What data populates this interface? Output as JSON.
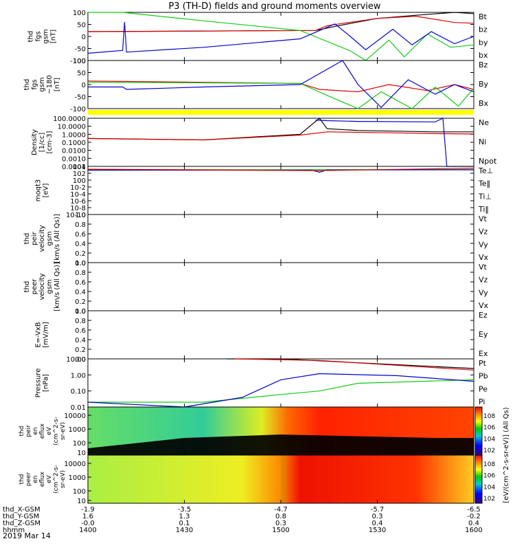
{
  "title": "P3 (TH-D) fields and ground moments overview",
  "date_label": "2019 Mar 14",
  "colors": {
    "black": "#000000",
    "red": "#dd0000",
    "green": "#11cc11",
    "blue": "#0000cc",
    "yellow": "#ffff00"
  },
  "chart_data": {
    "type": "line",
    "x_range": [
      "14:00",
      "16:00"
    ],
    "x_tick_rows": [
      {
        "label": "thd_X-GSM",
        "values": [
          "-1.9",
          "-3.5",
          "-4.7",
          "-5.7",
          "-6.5"
        ]
      },
      {
        "label": "thd_Y-GSM",
        "values": [
          "1.6",
          "1.3",
          "0.8",
          "0.3",
          "-0.2"
        ]
      },
      {
        "label": "thd_Z-GSM",
        "values": [
          "-0.0",
          "0.1",
          "0.3",
          "0.4",
          "0.4"
        ]
      },
      {
        "label": "hhmm",
        "values": [
          "1400",
          "1430",
          "1500",
          "1530",
          "1600"
        ]
      }
    ],
    "panels": [
      {
        "ylabel": [
          "thd",
          "fgs",
          "gsm",
          "[nT]"
        ],
        "yticks": [
          "100",
          "50",
          "0",
          "-50",
          "-100"
        ],
        "legend": [
          {
            "text": "Bt",
            "color": "#000000"
          },
          {
            "text": "bz",
            "color": "#dd0000"
          },
          {
            "text": "by",
            "color": "#11cc11"
          },
          {
            "text": "bx",
            "color": "#0000cc"
          }
        ],
        "series": [
          {
            "name": "Bt",
            "color": "#000000",
            "x": [
              0.0,
              0.59,
              0.65,
              0.75,
              0.85,
              0.95,
              1.0
            ],
            "y": [
              20,
              25,
              45,
              75,
              88,
              100,
              95
            ]
          },
          {
            "name": "bz",
            "color": "#dd0000",
            "x": [
              0.0,
              0.59,
              0.62,
              0.75,
              0.85,
              0.95,
              1.0
            ],
            "y": [
              20,
              25,
              45,
              75,
              84,
              58,
              55
            ]
          },
          {
            "name": "by",
            "color": "#11cc11",
            "x": [
              0.0,
              0.09,
              0.3,
              0.55,
              0.68,
              0.72,
              0.78,
              0.82,
              0.88,
              0.94,
              1.0
            ],
            "y": [
              110,
              100,
              65,
              25,
              -60,
              -100,
              -15,
              -85,
              10,
              -45,
              -35
            ]
          },
          {
            "name": "bx",
            "color": "#0000cc",
            "x": [
              0.0,
              0.09,
              0.095,
              0.1,
              0.3,
              0.55,
              0.64,
              0.68,
              0.72,
              0.79,
              0.84,
              0.89,
              0.95,
              1.0
            ],
            "y": [
              -70,
              -58,
              60,
              -65,
              -45,
              -10,
              52,
              0,
              -55,
              30,
              -35,
              20,
              -30,
              0
            ]
          }
        ]
      },
      {
        "ylabel": [
          "thd",
          "fgs",
          "gsm",
          "~180",
          "[nT]"
        ],
        "yticks": [
          "100",
          "50",
          "0",
          "-50",
          "-100"
        ],
        "legend": [
          {
            "text": "Bz",
            "color": "#dd0000"
          },
          {
            "text": "By",
            "color": "#11cc11"
          },
          {
            "text": "Bx",
            "color": "#0000cc"
          }
        ],
        "series": [
          {
            "name": "Bz",
            "color": "#dd0000",
            "x": [
              0.0,
              0.55,
              0.6,
              0.7,
              0.78,
              0.88,
              0.95,
              1.0
            ],
            "y": [
              15,
              5,
              -20,
              -30,
              0,
              -25,
              0,
              -20
            ]
          },
          {
            "name": "By",
            "color": "#11cc11",
            "x": [
              0.0,
              0.55,
              0.62,
              0.7,
              0.76,
              0.84,
              0.9,
              0.96,
              1.0
            ],
            "y": [
              10,
              5,
              -45,
              -120,
              -30,
              -110,
              -10,
              -90,
              -15
            ]
          },
          {
            "name": "Bx",
            "color": "#0000cc",
            "x": [
              0.0,
              0.09,
              0.1,
              0.3,
              0.55,
              0.66,
              0.7,
              0.76,
              0.83,
              0.9,
              0.95,
              1.0
            ],
            "y": [
              -10,
              -10,
              -20,
              -10,
              0,
              100,
              0,
              -95,
              20,
              -40,
              0,
              -30
            ]
          }
        ]
      },
      {
        "ylabel": [
          "Density",
          "[1/cc]",
          "[cm-3]"
        ],
        "yticks": [
          "100.0000",
          "10.0000",
          "1.0000",
          "0.1000",
          "0.0100",
          "0.0010",
          "0.0001"
        ],
        "log": true,
        "legend": [
          {
            "text": "Ne",
            "color": "#dd0000"
          },
          {
            "text": "Ni",
            "color": "#000000"
          },
          {
            "text": "Npot",
            "color": "#0000cc"
          }
        ],
        "series": [
          {
            "name": "Ni",
            "color": "#000000",
            "x": [
              0.0,
              0.3,
              0.55,
              0.6,
              0.62,
              0.7,
              0.9,
              1.0
            ],
            "y": [
              0.3,
              0.2,
              1.0,
              100,
              5,
              3,
              2,
              2
            ]
          },
          {
            "name": "Ne",
            "color": "#dd0000",
            "x": [
              0.0,
              0.3,
              0.55,
              0.62,
              0.8,
              0.9,
              1.0
            ],
            "y": [
              0.3,
              0.2,
              0.8,
              2,
              1.5,
              1.2,
              1.1
            ]
          },
          {
            "name": "Npot",
            "color": "#0000cc",
            "x": [
              0.59,
              0.62,
              0.7,
              0.9,
              0.92,
              0.93,
              0.95,
              1.0
            ],
            "y": [
              60,
              50,
              40,
              35,
              100,
              0.0001,
              0.0001,
              0.0001
            ]
          }
        ]
      },
      {
        "ylabel": [
          "moqt3",
          "[eV]"
        ],
        "yticks": [
          "10^4",
          "10^2",
          "10^0",
          "10^-2",
          "10^-4",
          "10^-6",
          "10^-8",
          "10^-10"
        ],
        "log": true,
        "legend": [
          {
            "text": "Te⊥",
            "color": "#dd0000"
          },
          {
            "text": "Te‖",
            "color": "#000000"
          },
          {
            "text": "Ti⊥",
            "color": "#0000cc"
          },
          {
            "text": "Ti‖",
            "color": "#11cc11"
          }
        ],
        "series": [
          {
            "name": "Ti‖",
            "color": "#11cc11",
            "x": [
              0.0,
              1.0
            ],
            "y": [
              1000,
              1200
            ]
          },
          {
            "name": "Ti⊥",
            "color": "#0000cc",
            "x": [
              0.0,
              0.58,
              0.6,
              0.62,
              1.0
            ],
            "y": [
              800,
              800,
              200,
              900,
              1000
            ]
          },
          {
            "name": "Te⊥",
            "color": "#dd0000",
            "x": [
              0.0,
              0.6,
              1.0
            ],
            "y": [
              1500,
              600,
              3000
            ]
          }
        ]
      },
      {
        "ylabel": [
          "thd",
          "peir",
          "velocity",
          "gsm",
          "[km/s (All Qs)]"
        ],
        "yticks": [
          "1.0",
          "0.8",
          "0.6",
          "0.4",
          "0.2",
          "0.0"
        ],
        "legend": [
          {
            "text": "Vt",
            "color": "#000000"
          },
          {
            "text": "Vz",
            "color": "#dd0000"
          },
          {
            "text": "Vy",
            "color": "#11cc11"
          },
          {
            "text": "Vx",
            "color": "#0000cc"
          }
        ],
        "series": []
      },
      {
        "ylabel": [
          "thd",
          "peer",
          "velocity",
          "gsm",
          "[km/s (All Qs)]"
        ],
        "yticks": [
          "1.0",
          "0.8",
          "0.6",
          "0.4",
          "0.2",
          "0.0"
        ],
        "legend": [
          {
            "text": "Vt",
            "color": "#000000"
          },
          {
            "text": "Vz",
            "color": "#dd0000"
          },
          {
            "text": "Vy",
            "color": "#11cc11"
          },
          {
            "text": "Vx",
            "color": "#0000cc"
          }
        ],
        "series": []
      },
      {
        "ylabel": [
          "E=-VxB",
          "[mV/m]"
        ],
        "yticks": [
          "1.0",
          "0.8",
          "0.6",
          "0.4",
          "0.2",
          "0.0"
        ],
        "legend": [
          {
            "text": "Ez",
            "color": "#dd0000"
          },
          {
            "text": "Ey",
            "color": "#11cc11"
          },
          {
            "text": "Ex",
            "color": "#0000cc"
          }
        ],
        "series": []
      },
      {
        "ylabel": [
          "Pressure",
          "[nPa]"
        ],
        "yticks": [
          "10.00",
          "1.00",
          "0.10",
          "0.01"
        ],
        "log": true,
        "legend": [
          {
            "text": "Pt",
            "color": "#000000"
          },
          {
            "text": "Pb",
            "color": "#dd0000"
          },
          {
            "text": "Pe",
            "color": "#11cc11"
          },
          {
            "text": "Pi",
            "color": "#0000cc"
          }
        ],
        "series": [
          {
            "name": "Pt",
            "color": "#000000",
            "x": [
              0.36,
              0.5,
              1.0
            ],
            "y": [
              20,
              12,
              2.5
            ]
          },
          {
            "name": "Pb",
            "color": "#dd0000",
            "x": [
              0.38,
              0.6,
              1.0
            ],
            "y": [
              15,
              8,
              2.0
            ]
          },
          {
            "name": "Pe",
            "color": "#11cc11",
            "x": [
              0.0,
              0.3,
              0.5,
              0.6,
              0.7,
              1.0
            ],
            "y": [
              0.02,
              0.02,
              0.06,
              0.1,
              0.3,
              0.5
            ]
          },
          {
            "name": "Pi",
            "color": "#0000cc",
            "x": [
              0.0,
              0.25,
              0.4,
              0.5,
              0.6,
              0.8,
              1.0
            ],
            "y": [
              0.02,
              0.006,
              0.04,
              0.5,
              1.2,
              0.9,
              0.4
            ]
          }
        ]
      }
    ],
    "spectrograms": [
      {
        "ylabel": [
          "thd",
          "peir",
          "en",
          "eflux",
          "eV",
          "(cm^2-s-",
          "sr-eV)"
        ],
        "yticks": [
          "10000",
          "1000",
          "100",
          "10"
        ]
      },
      {
        "ylabel": [
          "thd",
          "peer",
          "en",
          "eflux",
          "eV",
          "(cm^2-s-",
          "sr-eV)"
        ],
        "yticks": [
          "10000",
          "1000",
          "100",
          "10"
        ]
      }
    ],
    "colorbar": {
      "label": "[eV/(cm^2-s-sr-eV)] (All Qs)",
      "ticks": [
        "10^8",
        "10^6",
        "10^4",
        "10^2"
      ],
      "ticks2": [
        "10^8",
        "10^6",
        "10^4",
        "10^2"
      ]
    }
  }
}
